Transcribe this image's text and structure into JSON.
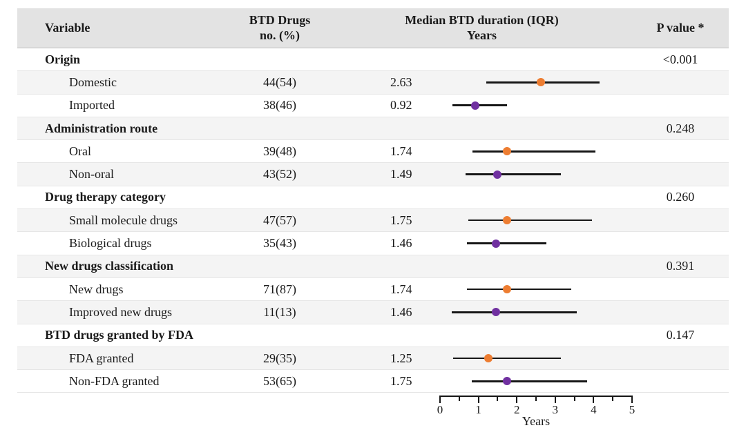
{
  "table": {
    "header": {
      "variable": "Variable",
      "btd_drugs_line1": "BTD Drugs",
      "btd_drugs_line2": "no. (%)",
      "duration_line1": "Median BTD duration (IQR)",
      "duration_line2": "Years",
      "p_value": "P value *"
    },
    "rows": [
      {
        "type": "group",
        "label": "Origin",
        "p_value": "<0.001"
      },
      {
        "type": "item",
        "label": "Domestic",
        "n_pct": "44(54)",
        "median_label": "2.63",
        "plot": {
          "median": 2.63,
          "iqr_low": 1.2,
          "iqr_high": 4.15,
          "dot": "orange"
        }
      },
      {
        "type": "item",
        "label": "Imported",
        "n_pct": "38(46)",
        "median_label": "0.92",
        "plot": {
          "median": 0.92,
          "iqr_low": 0.32,
          "iqr_high": 1.75,
          "dot": "purple"
        }
      },
      {
        "type": "group",
        "label": "Administration route",
        "p_value": "0.248"
      },
      {
        "type": "item",
        "label": "Oral",
        "n_pct": "39(48)",
        "median_label": "1.74",
        "plot": {
          "median": 1.74,
          "iqr_low": 0.85,
          "iqr_high": 4.05,
          "dot": "orange"
        }
      },
      {
        "type": "item",
        "label": "Non-oral",
        "n_pct": "43(52)",
        "median_label": "1.49",
        "plot": {
          "median": 1.49,
          "iqr_low": 0.66,
          "iqr_high": 3.15,
          "dot": "purple"
        }
      },
      {
        "type": "group",
        "label": "Drug therapy category",
        "p_value": "0.260"
      },
      {
        "type": "item",
        "label": "Small molecule drugs",
        "n_pct": "47(57)",
        "median_label": "1.75",
        "plot": {
          "median": 1.75,
          "iqr_low": 0.73,
          "iqr_high": 3.95,
          "dot": "orange"
        }
      },
      {
        "type": "item",
        "label": "Biological drugs",
        "n_pct": "35(43)",
        "median_label": "1.46",
        "plot": {
          "median": 1.46,
          "iqr_low": 0.71,
          "iqr_high": 2.77,
          "dot": "purple"
        }
      },
      {
        "type": "group",
        "label": "New drugs classification",
        "p_value": "0.391"
      },
      {
        "type": "item",
        "label": "New drugs",
        "n_pct": "71(87)",
        "median_label": "1.74",
        "plot": {
          "median": 1.74,
          "iqr_low": 0.71,
          "iqr_high": 3.41,
          "dot": "orange"
        }
      },
      {
        "type": "item",
        "label": "Improved new drugs",
        "n_pct": "11(13)",
        "median_label": "1.46",
        "plot": {
          "median": 1.46,
          "iqr_low": 0.3,
          "iqr_high": 3.57,
          "dot": "purple"
        }
      },
      {
        "type": "group",
        "label": "BTD drugs granted by FDA",
        "p_value": "0.147"
      },
      {
        "type": "item",
        "label": "FDA granted",
        "n_pct": "29(35)",
        "median_label": "1.25",
        "plot": {
          "median": 1.25,
          "iqr_low": 0.34,
          "iqr_high": 3.15,
          "dot": "orange"
        }
      },
      {
        "type": "item",
        "label": "Non-FDA granted",
        "n_pct": "53(65)",
        "median_label": "1.75",
        "plot": {
          "median": 1.75,
          "iqr_low": 0.82,
          "iqr_high": 3.84,
          "dot": "purple"
        }
      }
    ]
  },
  "axis": {
    "min": 0,
    "max": 5,
    "major_ticks": [
      0,
      1,
      2,
      3,
      4,
      5
    ],
    "minor_step": 0.5,
    "label": "Years"
  },
  "colors": {
    "orange": "#ED7D31",
    "purple": "#7030A0",
    "header_bg": "#E3E3E3",
    "stripe_bg": "#F4F4F4",
    "line": "#161616"
  },
  "chart_data": {
    "type": "scatter",
    "variant": "forest_plot_dot_whisker",
    "title": "Median BTD duration (IQR)",
    "xlabel": "Years",
    "xlim": [
      0,
      5
    ],
    "x_major_ticks": [
      0,
      1,
      2,
      3,
      4,
      5
    ],
    "x_minor_tick_step": 0.5,
    "grid": false,
    "legend": "none",
    "series": [
      {
        "category": "Domestic",
        "group": "Origin",
        "group_p_value": "<0.001",
        "n_pct": "44(54)",
        "median": 2.63,
        "iqr": [
          1.2,
          4.15
        ],
        "color": "#ED7D31"
      },
      {
        "category": "Imported",
        "group": "Origin",
        "group_p_value": "<0.001",
        "n_pct": "38(46)",
        "median": 0.92,
        "iqr": [
          0.32,
          1.75
        ],
        "color": "#7030A0"
      },
      {
        "category": "Oral",
        "group": "Administration route",
        "group_p_value": "0.248",
        "n_pct": "39(48)",
        "median": 1.74,
        "iqr": [
          0.85,
          4.05
        ],
        "color": "#ED7D31"
      },
      {
        "category": "Non-oral",
        "group": "Administration route",
        "group_p_value": "0.248",
        "n_pct": "43(52)",
        "median": 1.49,
        "iqr": [
          0.66,
          3.15
        ],
        "color": "#7030A0"
      },
      {
        "category": "Small molecule drugs",
        "group": "Drug therapy category",
        "group_p_value": "0.260",
        "n_pct": "47(57)",
        "median": 1.75,
        "iqr": [
          0.73,
          3.95
        ],
        "color": "#ED7D31"
      },
      {
        "category": "Biological drugs",
        "group": "Drug therapy category",
        "group_p_value": "0.260",
        "n_pct": "35(43)",
        "median": 1.46,
        "iqr": [
          0.71,
          2.77
        ],
        "color": "#7030A0"
      },
      {
        "category": "New drugs",
        "group": "New drugs classification",
        "group_p_value": "0.391",
        "n_pct": "71(87)",
        "median": 1.74,
        "iqr": [
          0.71,
          3.41
        ],
        "color": "#ED7D31"
      },
      {
        "category": "Improved new drugs",
        "group": "New drugs classification",
        "group_p_value": "0.391",
        "n_pct": "11(13)",
        "median": 1.46,
        "iqr": [
          0.3,
          3.57
        ],
        "color": "#7030A0"
      },
      {
        "category": "FDA granted",
        "group": "BTD drugs granted by FDA",
        "group_p_value": "0.147",
        "n_pct": "29(35)",
        "median": 1.25,
        "iqr": [
          0.34,
          3.15
        ],
        "color": "#ED7D31"
      },
      {
        "category": "Non-FDA granted",
        "group": "BTD drugs granted by FDA",
        "group_p_value": "0.147",
        "n_pct": "53(65)",
        "median": 1.75,
        "iqr": [
          0.82,
          3.84
        ],
        "color": "#7030A0"
      }
    ]
  }
}
